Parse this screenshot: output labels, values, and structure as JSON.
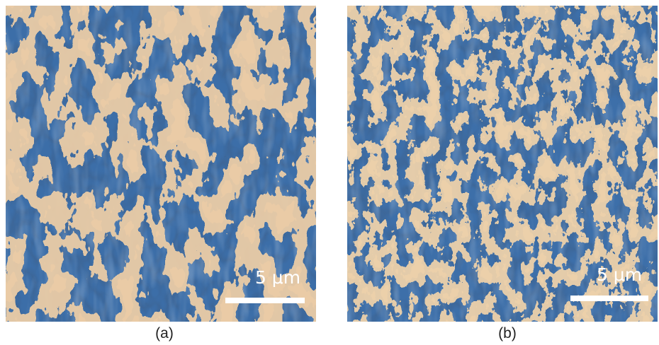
{
  "panels": [
    {
      "scale_label": "5 μm",
      "caption": "(a)"
    },
    {
      "scale_label": "5 μm",
      "caption": "(b)"
    }
  ]
}
